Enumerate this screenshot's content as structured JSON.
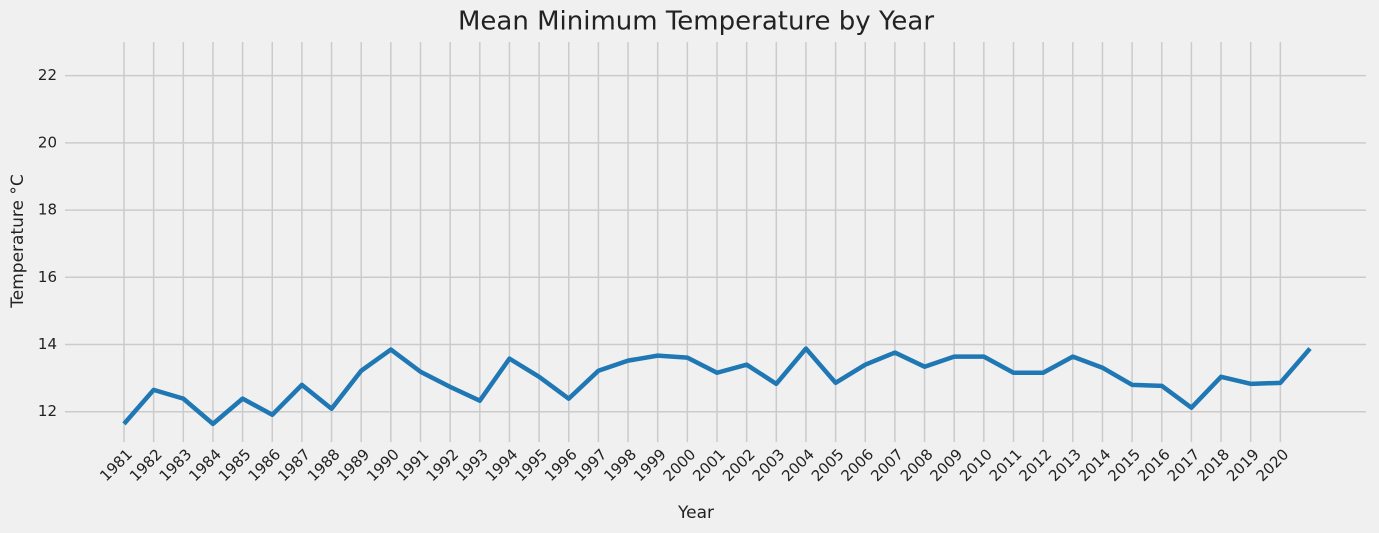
{
  "chart_data": {
    "type": "line",
    "title": "Mean Minimum Temperature by Year",
    "x_label": "Year",
    "y_label": "Temperature °C",
    "categories": [
      "1981",
      "1982",
      "1983",
      "1984",
      "1985",
      "1986",
      "1987",
      "1988",
      "1989",
      "1990",
      "1991",
      "1992",
      "1993",
      "1994",
      "1995",
      "1996",
      "1997",
      "1998",
      "1999",
      "2000",
      "2001",
      "2002",
      "2003",
      "2004",
      "2005",
      "2006",
      "2007",
      "2008",
      "2009",
      "2010",
      "2011",
      "2012",
      "2013",
      "2014",
      "2015",
      "2016",
      "2017",
      "2018",
      "2019",
      "2020",
      null
    ],
    "series": [
      {
        "name": "Mean Minimum Temperature",
        "color": "#1f77b4",
        "values": [
          11.64,
          12.65,
          12.39,
          11.64,
          12.39,
          11.91,
          12.8,
          12.09,
          13.22,
          13.85,
          13.19,
          12.74,
          12.33,
          13.58,
          13.04,
          12.39,
          13.22,
          13.52,
          13.67,
          13.61,
          13.16,
          13.4,
          12.83,
          13.88,
          12.86,
          13.4,
          13.76,
          13.34,
          13.64,
          13.64,
          13.16,
          13.16,
          13.64,
          13.31,
          12.8,
          12.77,
          12.12,
          13.04,
          12.83,
          12.86,
          13.88
        ]
      }
    ],
    "ylim": [
      11.1,
      23.0
    ],
    "yticks": [
      12,
      14,
      16,
      18,
      20,
      22
    ],
    "grid": true
  }
}
